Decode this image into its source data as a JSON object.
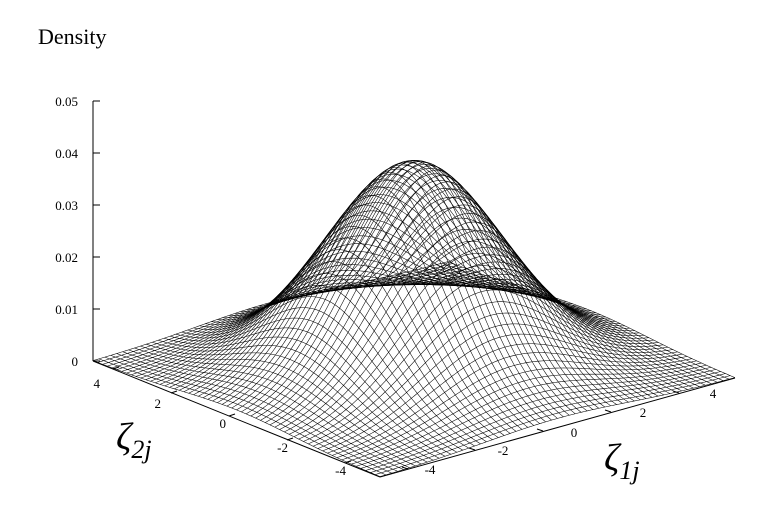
{
  "chart_data": {
    "type": "surface",
    "title": "Density",
    "x_axis": {
      "label_base": "ζ",
      "label_sub": "1j",
      "ticks": [
        -4,
        -2,
        0,
        2,
        4
      ],
      "range": [
        -5,
        5
      ]
    },
    "y_axis": {
      "label_base": "ζ",
      "label_sub": "2j",
      "ticks": [
        -4,
        -2,
        0,
        2,
        4
      ],
      "range": [
        -5,
        5
      ]
    },
    "z_axis": {
      "ticks": [
        "0",
        "0.01",
        "0.02",
        "0.03",
        "0.04",
        "0.05"
      ],
      "range": [
        0,
        0.05
      ]
    },
    "peak_density": 0.0398,
    "peak_at": [
      0,
      0
    ],
    "surface_color": "#000000",
    "background_color": "#ffffff"
  }
}
